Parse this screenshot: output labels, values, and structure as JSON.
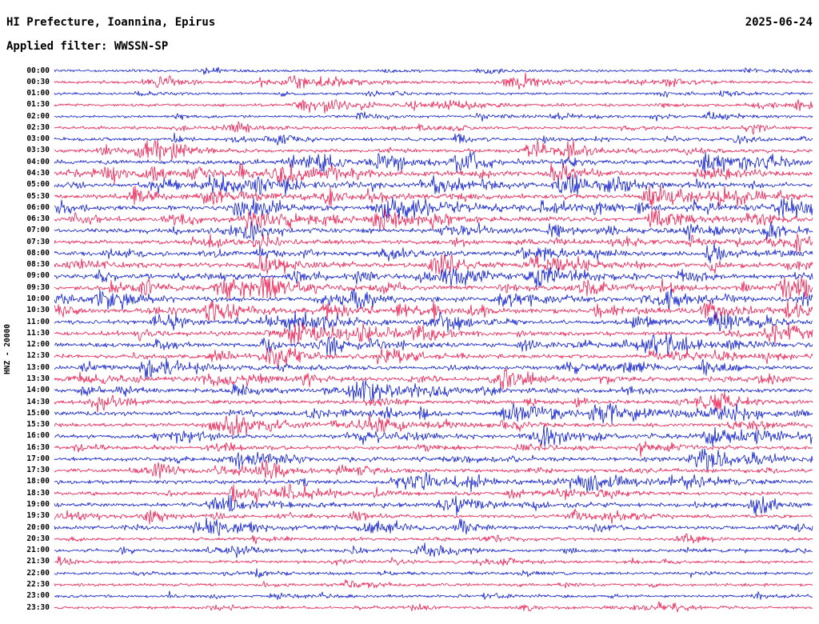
{
  "header": {
    "title": "HI Prefecture, Ioannina, Epirus",
    "date": "2025-06-24",
    "filter_label": "Applied filter: WWSSN-SP"
  },
  "axis": {
    "y_label": "HNZ - 20000"
  },
  "colors": {
    "trace_blue": "#0010c8",
    "trace_red": "#e81148",
    "text": "#000000",
    "background": "#ffffff"
  },
  "chart_data": {
    "type": "line",
    "subtype": "helicorder-seismogram",
    "title": "HI Prefecture, Ioannina, Epirus",
    "date": "2025-06-24",
    "filter": "WWSSN-SP",
    "channel_scale_label": "HNZ - 20000",
    "minutes_per_row": 30,
    "trace_color_cycle": [
      "blue",
      "red"
    ],
    "amplitude_note": "a = relative background noise amplitude (0-1) read from trace thickness; e = horizontal positions (fraction of row width) of visible large event bursts",
    "rows": [
      {
        "t": "00:00",
        "c": "blue",
        "a": 0.22,
        "e": []
      },
      {
        "t": "00:30",
        "c": "red",
        "a": 0.3,
        "e": [
          0.14,
          0.32,
          0.61
        ]
      },
      {
        "t": "01:00",
        "c": "blue",
        "a": 0.22,
        "e": []
      },
      {
        "t": "01:30",
        "c": "red",
        "a": 0.33,
        "e": [
          0.33,
          0.98
        ]
      },
      {
        "t": "02:00",
        "c": "blue",
        "a": 0.25,
        "e": [
          0.867
        ]
      },
      {
        "t": "02:30",
        "c": "red",
        "a": 0.33,
        "e": [
          0.23,
          0.75
        ]
      },
      {
        "t": "03:00",
        "c": "blue",
        "a": 0.38,
        "e": [
          0.3,
          0.53
        ]
      },
      {
        "t": "03:30",
        "c": "red",
        "a": 0.5,
        "e": [
          0.12,
          0.63,
          0.68
        ]
      },
      {
        "t": "04:00",
        "c": "blue",
        "a": 0.65,
        "e": [
          0.35,
          0.43,
          0.55,
          0.86
        ]
      },
      {
        "t": "04:30",
        "c": "red",
        "a": 0.65,
        "e": [
          0.31,
          0.56,
          0.66,
          0.86
        ]
      },
      {
        "t": "05:00",
        "c": "blue",
        "a": 0.62,
        "e": [
          0.21,
          0.5,
          0.68
        ]
      },
      {
        "t": "05:30",
        "c": "red",
        "a": 0.65,
        "e": [
          0.2,
          0.36,
          0.79,
          0.88
        ]
      },
      {
        "t": "06:00",
        "c": "blue",
        "a": 0.68,
        "e": [
          0.24,
          0.445,
          0.645,
          0.96
        ]
      },
      {
        "t": "06:30",
        "c": "red",
        "a": 0.66,
        "e": [
          0.155,
          0.266,
          0.435
        ]
      },
      {
        "t": "07:00",
        "c": "blue",
        "a": 0.65,
        "e": [
          0.255,
          0.656
        ]
      },
      {
        "t": "07:30",
        "c": "red",
        "a": 0.62,
        "e": [
          0.266,
          0.983
        ]
      },
      {
        "t": "08:00",
        "c": "blue",
        "a": 0.65,
        "e": [
          0.624,
          0.867
        ]
      },
      {
        "t": "08:30",
        "c": "red",
        "a": 0.62,
        "e": [
          0.276,
          0.5,
          0.635
        ]
      },
      {
        "t": "09:00",
        "c": "blue",
        "a": 0.65,
        "e": [
          0.06,
          0.52,
          0.64
        ]
      },
      {
        "t": "09:30",
        "c": "red",
        "a": 0.68,
        "e": [
          0.234,
          0.7,
          0.97
        ]
      },
      {
        "t": "10:00",
        "c": "blue",
        "a": 0.58,
        "e": [
          0.065,
          0.392,
          0.6,
          0.81
        ]
      },
      {
        "t": "10:30",
        "c": "red",
        "a": 0.65,
        "e": [
          0.208,
          0.867,
          0.967
        ]
      },
      {
        "t": "11:00",
        "c": "blue",
        "a": 0.6,
        "e": [
          0.318,
          0.514,
          0.877
        ]
      },
      {
        "t": "11:30",
        "c": "red",
        "a": 0.65,
        "e": [
          0.318,
          0.477,
          0.957
        ]
      },
      {
        "t": "12:00",
        "c": "blue",
        "a": 0.58,
        "e": [
          0.276,
          0.366,
          0.62,
          0.788
        ]
      },
      {
        "t": "12:30",
        "c": "red",
        "a": 0.6,
        "e": [
          0.292,
          0.445,
          0.82
        ]
      },
      {
        "t": "13:00",
        "c": "blue",
        "a": 0.52,
        "e": [
          0.139,
          0.682
        ]
      },
      {
        "t": "13:30",
        "c": "red",
        "a": 0.56,
        "e": [
          0.034,
          0.208,
          0.593
        ]
      },
      {
        "t": "14:00",
        "c": "blue",
        "a": 0.56,
        "e": [
          0.239,
          0.408,
          0.561
        ]
      },
      {
        "t": "14:30",
        "c": "red",
        "a": 0.55,
        "e": [
          0.857
        ]
      },
      {
        "t": "15:00",
        "c": "blue",
        "a": 0.55,
        "e": [
          0.603,
          0.724,
          0.883
        ]
      },
      {
        "t": "15:30",
        "c": "red",
        "a": 0.55,
        "e": [
          0.218,
          0.419
        ]
      },
      {
        "t": "16:00",
        "c": "blue",
        "a": 0.52,
        "e": [
          0.166,
          0.645,
          0.867
        ]
      },
      {
        "t": "16:30",
        "c": "red",
        "a": 0.5,
        "e": [
          0.213
        ]
      },
      {
        "t": "17:00",
        "c": "blue",
        "a": 0.48,
        "e": [
          0.245,
          0.851
        ]
      },
      {
        "t": "17:30",
        "c": "red",
        "a": 0.5,
        "e": [
          0.134,
          0.276
        ]
      },
      {
        "t": "18:00",
        "c": "blue",
        "a": 0.47,
        "e": [
          0.482,
          0.703,
          0.835
        ]
      },
      {
        "t": "18:30",
        "c": "red",
        "a": 0.5,
        "e": [
          0.308,
          0.424,
          0.603
        ]
      },
      {
        "t": "19:00",
        "c": "blue",
        "a": 0.47,
        "e": [
          0.224,
          0.519
        ]
      },
      {
        "t": "19:30",
        "c": "red",
        "a": 0.44,
        "e": [
          0.123,
          0.693
        ]
      },
      {
        "t": "20:00",
        "c": "blue",
        "a": 0.47,
        "e": [
          0.203,
          0.535
        ]
      },
      {
        "t": "20:30",
        "c": "red",
        "a": 0.34,
        "e": []
      },
      {
        "t": "21:00",
        "c": "blue",
        "a": 0.38,
        "e": [
          0.487
        ]
      },
      {
        "t": "21:30",
        "c": "red",
        "a": 0.33,
        "e": []
      },
      {
        "t": "22:00",
        "c": "blue",
        "a": 0.28,
        "e": [
          0.624
        ]
      },
      {
        "t": "22:30",
        "c": "red",
        "a": 0.28,
        "e": []
      },
      {
        "t": "23:00",
        "c": "blue",
        "a": 0.27,
        "e": [
          0.292
        ]
      },
      {
        "t": "23:30",
        "c": "red",
        "a": 0.27,
        "e": [
          0.799
        ]
      }
    ]
  }
}
